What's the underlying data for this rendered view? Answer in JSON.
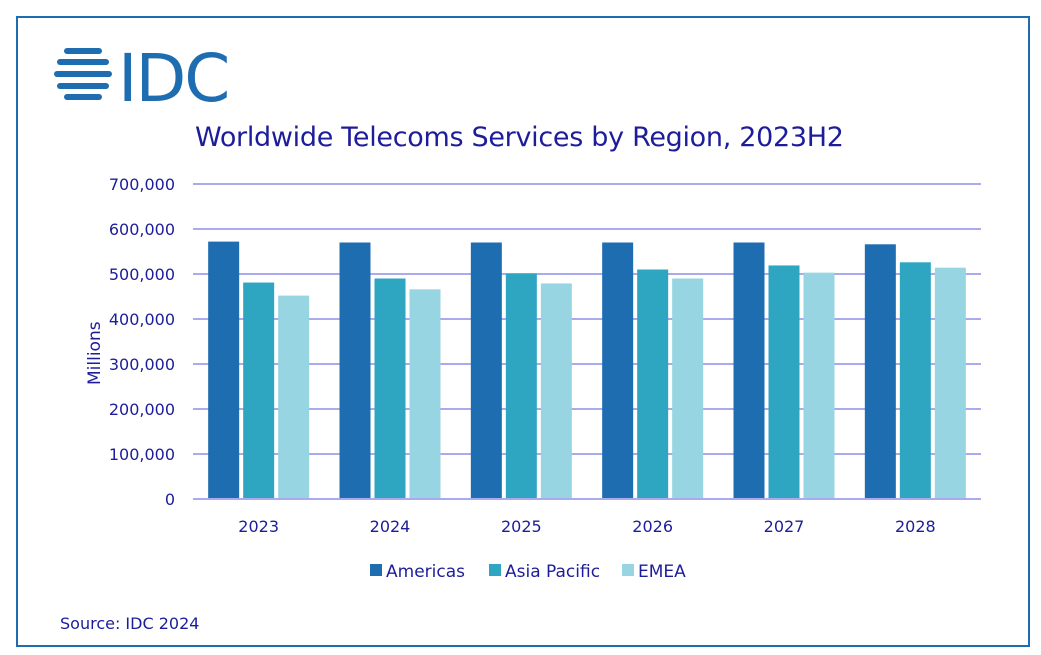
{
  "brand": {
    "logo_text": "IDC",
    "logo_color": "#1f6db1"
  },
  "title": "Worldwide Telecoms Services by Region, 2023H2",
  "source": "Source: IDC 2024",
  "chart_data": {
    "type": "bar",
    "title": "Worldwide Telecoms Services by Region, 2023H2",
    "xlabel": "",
    "ylabel": "Millions",
    "ylim": [
      0,
      700000
    ],
    "yticks": [
      0,
      100000,
      200000,
      300000,
      400000,
      500000,
      600000,
      700000
    ],
    "ytick_labels": [
      "0",
      "100,000",
      "200,000",
      "300,000",
      "400,000",
      "500,000",
      "600,000",
      "700,000"
    ],
    "grid": true,
    "legend_position": "bottom",
    "categories": [
      "2023",
      "2024",
      "2025",
      "2026",
      "2027",
      "2028"
    ],
    "series": [
      {
        "name": "Americas",
        "color": "#1f6db1",
        "values": [
          572000,
          570000,
          570000,
          570000,
          570000,
          566000
        ]
      },
      {
        "name": "Asia Pacific",
        "color": "#2ea6c2",
        "values": [
          481000,
          490000,
          501000,
          510000,
          519000,
          526000
        ]
      },
      {
        "name": "EMEA",
        "color": "#96d5e1",
        "values": [
          452000,
          466000,
          479000,
          490000,
          503000,
          514000
        ]
      }
    ],
    "gridline_color": "#aaaaee"
  }
}
